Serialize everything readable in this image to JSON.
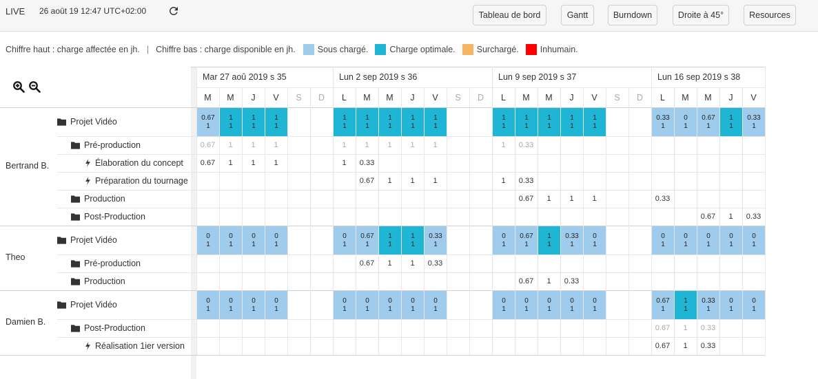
{
  "header": {
    "live_label": "LIVE",
    "datetime": "26 août 19  12:47 UTC+02:00",
    "buttons": [
      {
        "label": "Tableau de bord"
      },
      {
        "label": "Gantt"
      },
      {
        "label": "Burndown"
      },
      {
        "label": "Droite à 45°"
      },
      {
        "label": "Resources"
      }
    ]
  },
  "legend": {
    "top_text": "Chiffre haut : charge affectée en jh.",
    "separator": "|",
    "bottom_text": "Chiffre bas : charge disponible en jh.",
    "items": [
      {
        "label": "Sous chargé.",
        "color": "#9fcbec"
      },
      {
        "label": "Charge optimale.",
        "color": "#1fb6d6"
      },
      {
        "label": "Surchargé.",
        "color": "#f7b563"
      },
      {
        "label": "Inhumain.",
        "color": "#ff0000"
      }
    ]
  },
  "colors": {
    "sous": "#9fcbec",
    "opt": "#1fb6d6"
  },
  "weeks": [
    {
      "label": "Mar 27 aoû 2019 s 35",
      "days": [
        {
          "l": "M"
        },
        {
          "l": "M"
        },
        {
          "l": "J"
        },
        {
          "l": "V"
        },
        {
          "l": "S",
          "we": true
        },
        {
          "l": "D",
          "we": true
        }
      ]
    },
    {
      "label": "Lun 2 sep 2019 s 36",
      "days": [
        {
          "l": "L"
        },
        {
          "l": "M"
        },
        {
          "l": "M"
        },
        {
          "l": "J"
        },
        {
          "l": "V"
        },
        {
          "l": "S",
          "we": true
        },
        {
          "l": "D",
          "we": true
        }
      ]
    },
    {
      "label": "Lun 9 sep 2019 s 37",
      "days": [
        {
          "l": "L"
        },
        {
          "l": "M"
        },
        {
          "l": "M"
        },
        {
          "l": "J"
        },
        {
          "l": "V"
        },
        {
          "l": "S",
          "we": true
        },
        {
          "l": "D",
          "we": true
        }
      ]
    },
    {
      "label": "Lun 16 sep 2019 s 38",
      "days": [
        {
          "l": "L"
        },
        {
          "l": "M"
        },
        {
          "l": "M"
        },
        {
          "l": "J"
        },
        {
          "l": "V"
        }
      ]
    }
  ],
  "people": [
    {
      "name": "Bertrand B.",
      "rows": [
        {
          "label": "Projet Vidéo",
          "icon": "folder",
          "indent": 0,
          "type": "project",
          "cells": [
            [
              "0.67",
              "1",
              "sous"
            ],
            [
              "1",
              "1",
              "opt"
            ],
            [
              "1",
              "1",
              "opt"
            ],
            [
              "1",
              "1",
              "opt"
            ],
            null,
            null,
            [
              "1",
              "1",
              "opt"
            ],
            [
              "1",
              "1",
              "opt"
            ],
            [
              "1",
              "1",
              "opt"
            ],
            [
              "1",
              "1",
              "opt"
            ],
            [
              "1",
              "1",
              "opt"
            ],
            null,
            null,
            [
              "1",
              "1",
              "opt"
            ],
            [
              "1",
              "1",
              "opt"
            ],
            [
              "1",
              "1",
              "opt"
            ],
            [
              "1",
              "1",
              "opt"
            ],
            [
              "1",
              "1",
              "opt"
            ],
            null,
            null,
            [
              "0.33",
              "1",
              "sous"
            ],
            [
              "0",
              "1",
              "sous"
            ],
            [
              "0.67",
              "1",
              "sous"
            ],
            [
              "1",
              "1",
              "opt"
            ],
            [
              "0.33",
              "1",
              "sous"
            ]
          ]
        },
        {
          "label": "Pré-production",
          "icon": "folder",
          "indent": 1,
          "type": "sub",
          "grey": true,
          "vals": [
            "0.67",
            "1",
            "1",
            "1",
            "",
            "",
            "1",
            "1",
            "1",
            "1",
            "1",
            "",
            "",
            "1",
            "0.33",
            "",
            "",
            "",
            "",
            "",
            "",
            "",
            "",
            "",
            ""
          ]
        },
        {
          "label": "Élaboration du concept",
          "icon": "bolt",
          "indent": 2,
          "type": "sub",
          "vals": [
            "0.67",
            "1",
            "1",
            "1",
            "",
            "",
            "1",
            "0.33",
            "",
            "",
            "",
            "",
            "",
            "",
            "",
            "",
            "",
            "",
            "",
            "",
            "",
            "",
            "",
            "",
            ""
          ]
        },
        {
          "label": "Préparation du tournage",
          "icon": "bolt",
          "indent": 2,
          "type": "sub",
          "vals": [
            "",
            "",
            "",
            "",
            "",
            "",
            "",
            "0.67",
            "1",
            "1",
            "1",
            "",
            "",
            "1",
            "0.33",
            "",
            "",
            "",
            "",
            "",
            "",
            "",
            "",
            "",
            ""
          ]
        },
        {
          "label": "Production",
          "icon": "folder",
          "indent": 1,
          "type": "sub",
          "vals": [
            "",
            "",
            "",
            "",
            "",
            "",
            "",
            "",
            "",
            "",
            "",
            "",
            "",
            "",
            "0.67",
            "1",
            "1",
            "1",
            "",
            "",
            "0.33",
            "",
            "",
            "",
            ""
          ]
        },
        {
          "label": "Post-Production",
          "icon": "folder",
          "indent": 1,
          "type": "sub",
          "vals": [
            "",
            "",
            "",
            "",
            "",
            "",
            "",
            "",
            "",
            "",
            "",
            "",
            "",
            "",
            "",
            "",
            "",
            "",
            "",
            "",
            "",
            "",
            "0.67",
            "1",
            "0.33"
          ]
        }
      ]
    },
    {
      "name": "Theo",
      "rows": [
        {
          "label": "Projet Vidéo",
          "icon": "folder",
          "indent": 0,
          "type": "project",
          "cells": [
            [
              "0",
              "1",
              "sous"
            ],
            [
              "0",
              "1",
              "sous"
            ],
            [
              "0",
              "1",
              "sous"
            ],
            [
              "0",
              "1",
              "sous"
            ],
            null,
            null,
            [
              "0",
              "1",
              "sous"
            ],
            [
              "0.67",
              "1",
              "sous"
            ],
            [
              "1",
              "1",
              "opt"
            ],
            [
              "1",
              "1",
              "opt"
            ],
            [
              "0.33",
              "1",
              "sous"
            ],
            null,
            null,
            [
              "0",
              "1",
              "sous"
            ],
            [
              "0.67",
              "1",
              "sous"
            ],
            [
              "1",
              "1",
              "opt"
            ],
            [
              "0.33",
              "1",
              "sous"
            ],
            [
              "0",
              "1",
              "sous"
            ],
            null,
            null,
            [
              "0",
              "1",
              "sous"
            ],
            [
              "0",
              "1",
              "sous"
            ],
            [
              "0",
              "1",
              "sous"
            ],
            [
              "0",
              "1",
              "sous"
            ],
            [
              "0",
              "1",
              "sous"
            ]
          ]
        },
        {
          "label": "Pré-production",
          "icon": "folder",
          "indent": 1,
          "type": "sub",
          "vals": [
            "",
            "",
            "",
            "",
            "",
            "",
            "",
            "0.67",
            "1",
            "1",
            "0.33",
            "",
            "",
            "",
            "",
            "",
            "",
            "",
            "",
            "",
            "",
            "",
            "",
            "",
            ""
          ]
        },
        {
          "label": "Production",
          "icon": "folder",
          "indent": 1,
          "type": "sub",
          "vals": [
            "",
            "",
            "",
            "",
            "",
            "",
            "",
            "",
            "",
            "",
            "",
            "",
            "",
            "",
            "0.67",
            "1",
            "0.33",
            "",
            "",
            "",
            "",
            "",
            "",
            "",
            ""
          ]
        }
      ]
    },
    {
      "name": "Damien B.",
      "rows": [
        {
          "label": "Projet Vidéo",
          "icon": "folder",
          "indent": 0,
          "type": "project",
          "cells": [
            [
              "0",
              "1",
              "sous"
            ],
            [
              "0",
              "1",
              "sous"
            ],
            [
              "0",
              "1",
              "sous"
            ],
            [
              "0",
              "1",
              "sous"
            ],
            null,
            null,
            [
              "0",
              "1",
              "sous"
            ],
            [
              "0",
              "1",
              "sous"
            ],
            [
              "0",
              "1",
              "sous"
            ],
            [
              "0",
              "1",
              "sous"
            ],
            [
              "0",
              "1",
              "sous"
            ],
            null,
            null,
            [
              "0",
              "1",
              "sous"
            ],
            [
              "0",
              "1",
              "sous"
            ],
            [
              "0",
              "1",
              "sous"
            ],
            [
              "0",
              "1",
              "sous"
            ],
            [
              "0",
              "1",
              "sous"
            ],
            null,
            null,
            [
              "0.67",
              "1",
              "sous"
            ],
            [
              "1",
              "1",
              "opt"
            ],
            [
              "0.33",
              "1",
              "sous"
            ],
            [
              "0",
              "1",
              "sous"
            ],
            [
              "0",
              "1",
              "sous"
            ]
          ]
        },
        {
          "label": "Post-Production",
          "icon": "folder",
          "indent": 1,
          "type": "sub",
          "grey": true,
          "vals": [
            "",
            "",
            "",
            "",
            "",
            "",
            "",
            "",
            "",
            "",
            "",
            "",
            "",
            "",
            "",
            "",
            "",
            "",
            "",
            "",
            "0.67",
            "1",
            "0.33",
            "",
            ""
          ]
        },
        {
          "label": "Réalisation 1ier version",
          "icon": "bolt",
          "indent": 2,
          "type": "sub",
          "vals": [
            "",
            "",
            "",
            "",
            "",
            "",
            "",
            "",
            "",
            "",
            "",
            "",
            "",
            "",
            "",
            "",
            "",
            "",
            "",
            "",
            "0.67",
            "1",
            "0.33",
            "",
            ""
          ]
        }
      ]
    }
  ]
}
